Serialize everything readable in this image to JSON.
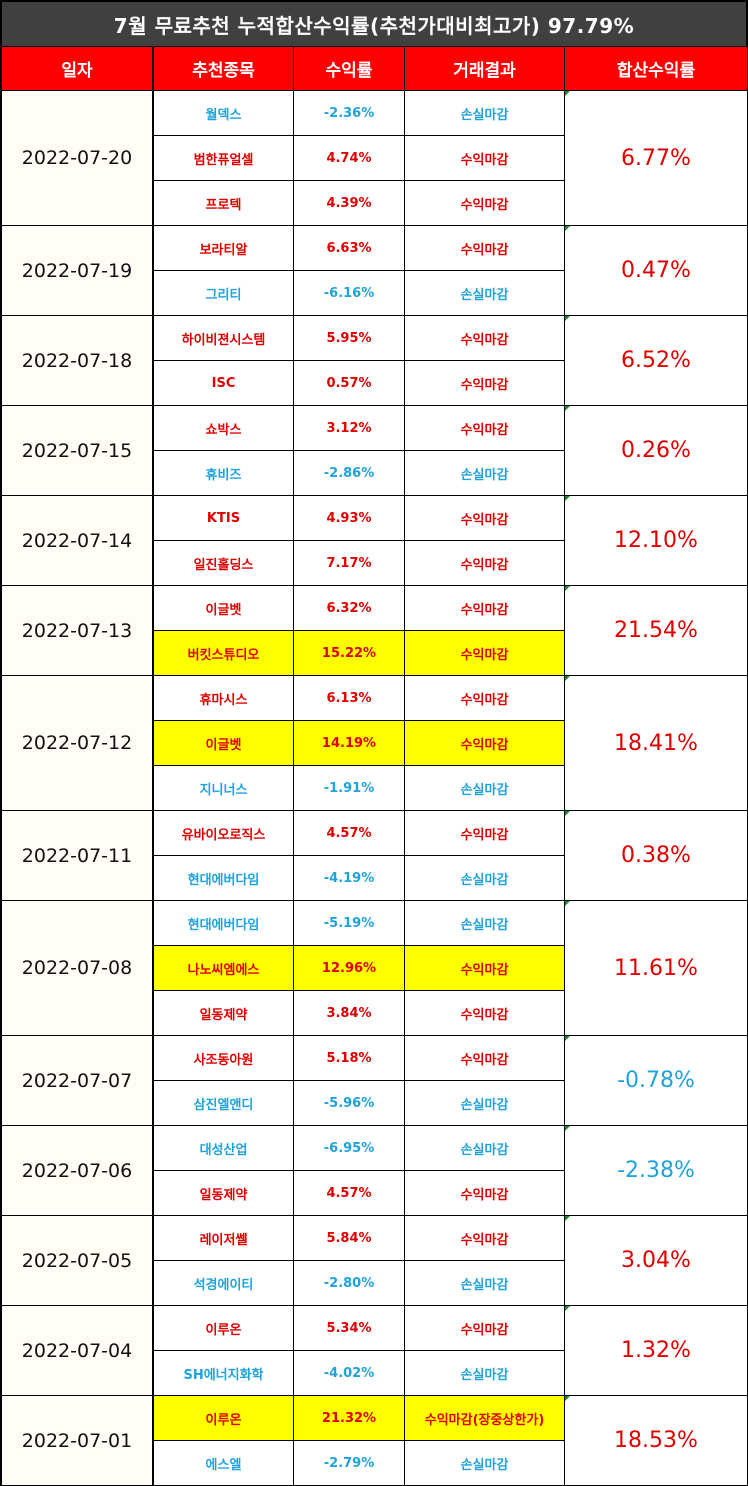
{
  "title": "7월 무료추천 누적합산수익률(추천가대비최고가) 97.79%",
  "headers": [
    "일자",
    "추천종목",
    "수익률",
    "거래결과",
    "합산수익률"
  ],
  "colors": {
    "title_bg": "#404040",
    "header_bg": "#ff0000",
    "gain": "#e00000",
    "loss": "#1ea3dc",
    "highlight": "#ffff00",
    "date_bg": "#fffdf5"
  },
  "groups": [
    {
      "date": "2022-07-20",
      "total": "6.77%",
      "rows": [
        {
          "stock": "월덱스",
          "ret": "-2.36%",
          "result": "손실마감",
          "hl": false
        },
        {
          "stock": "범한퓨얼셀",
          "ret": "4.74%",
          "result": "수익마감",
          "hl": false
        },
        {
          "stock": "프로텍",
          "ret": "4.39%",
          "result": "수익마감",
          "hl": false
        }
      ]
    },
    {
      "date": "2022-07-19",
      "total": "0.47%",
      "rows": [
        {
          "stock": "보라티알",
          "ret": "6.63%",
          "result": "수익마감",
          "hl": false
        },
        {
          "stock": "그리티",
          "ret": "-6.16%",
          "result": "손실마감",
          "hl": false
        }
      ]
    },
    {
      "date": "2022-07-18",
      "total": "6.52%",
      "rows": [
        {
          "stock": "하이비젼시스템",
          "ret": "5.95%",
          "result": "수익마감",
          "hl": false
        },
        {
          "stock": "ISC",
          "ret": "0.57%",
          "result": "수익마감",
          "hl": false
        }
      ]
    },
    {
      "date": "2022-07-15",
      "total": "0.26%",
      "rows": [
        {
          "stock": "쇼박스",
          "ret": "3.12%",
          "result": "수익마감",
          "hl": false
        },
        {
          "stock": "휴비즈",
          "ret": "-2.86%",
          "result": "손실마감",
          "hl": false
        }
      ]
    },
    {
      "date": "2022-07-14",
      "total": "12.10%",
      "rows": [
        {
          "stock": "KTIS",
          "ret": "4.93%",
          "result": "수익마감",
          "hl": false
        },
        {
          "stock": "일진홀딩스",
          "ret": "7.17%",
          "result": "수익마감",
          "hl": false
        }
      ]
    },
    {
      "date": "2022-07-13",
      "total": "21.54%",
      "rows": [
        {
          "stock": "이글벳",
          "ret": "6.32%",
          "result": "수익마감",
          "hl": false
        },
        {
          "stock": "버킷스튜디오",
          "ret": "15.22%",
          "result": "수익마감",
          "hl": true
        }
      ]
    },
    {
      "date": "2022-07-12",
      "total": "18.41%",
      "rows": [
        {
          "stock": "휴마시스",
          "ret": "6.13%",
          "result": "수익마감",
          "hl": false
        },
        {
          "stock": "이글벳",
          "ret": "14.19%",
          "result": "수익마감",
          "hl": true
        },
        {
          "stock": "지니너스",
          "ret": "-1.91%",
          "result": "손실마감",
          "hl": false
        }
      ]
    },
    {
      "date": "2022-07-11",
      "total": "0.38%",
      "rows": [
        {
          "stock": "유바이오로직스",
          "ret": "4.57%",
          "result": "수익마감",
          "hl": false
        },
        {
          "stock": "현대에버다임",
          "ret": "-4.19%",
          "result": "손실마감",
          "hl": false
        }
      ]
    },
    {
      "date": "2022-07-08",
      "total": "11.61%",
      "rows": [
        {
          "stock": "현대에버다임",
          "ret": "-5.19%",
          "result": "손실마감",
          "hl": false
        },
        {
          "stock": "나노씨엠에스",
          "ret": "12.96%",
          "result": "수익마감",
          "hl": true
        },
        {
          "stock": "일동제약",
          "ret": "3.84%",
          "result": "수익마감",
          "hl": false
        }
      ]
    },
    {
      "date": "2022-07-07",
      "total": "-0.78%",
      "rows": [
        {
          "stock": "사조동아원",
          "ret": "5.18%",
          "result": "수익마감",
          "hl": false
        },
        {
          "stock": "삼진엘앤디",
          "ret": "-5.96%",
          "result": "손실마감",
          "hl": false
        }
      ]
    },
    {
      "date": "2022-07-06",
      "total": "-2.38%",
      "rows": [
        {
          "stock": "대성산업",
          "ret": "-6.95%",
          "result": "손실마감",
          "hl": false
        },
        {
          "stock": "일동제약",
          "ret": "4.57%",
          "result": "수익마감",
          "hl": false
        }
      ]
    },
    {
      "date": "2022-07-05",
      "total": "3.04%",
      "rows": [
        {
          "stock": "레이저쎌",
          "ret": "5.84%",
          "result": "수익마감",
          "hl": false
        },
        {
          "stock": "석경에이티",
          "ret": "-2.80%",
          "result": "손실마감",
          "hl": false
        }
      ]
    },
    {
      "date": "2022-07-04",
      "total": "1.32%",
      "rows": [
        {
          "stock": "이루온",
          "ret": "5.34%",
          "result": "수익마감",
          "hl": false
        },
        {
          "stock": "SH에너지화학",
          "ret": "-4.02%",
          "result": "손실마감",
          "hl": false
        }
      ]
    },
    {
      "date": "2022-07-01",
      "total": "18.53%",
      "rows": [
        {
          "stock": "이루온",
          "ret": "21.32%",
          "result": "수익마감(장중상한가)",
          "hl": true
        },
        {
          "stock": "에스엘",
          "ret": "-2.79%",
          "result": "손실마감",
          "hl": false
        }
      ]
    }
  ]
}
